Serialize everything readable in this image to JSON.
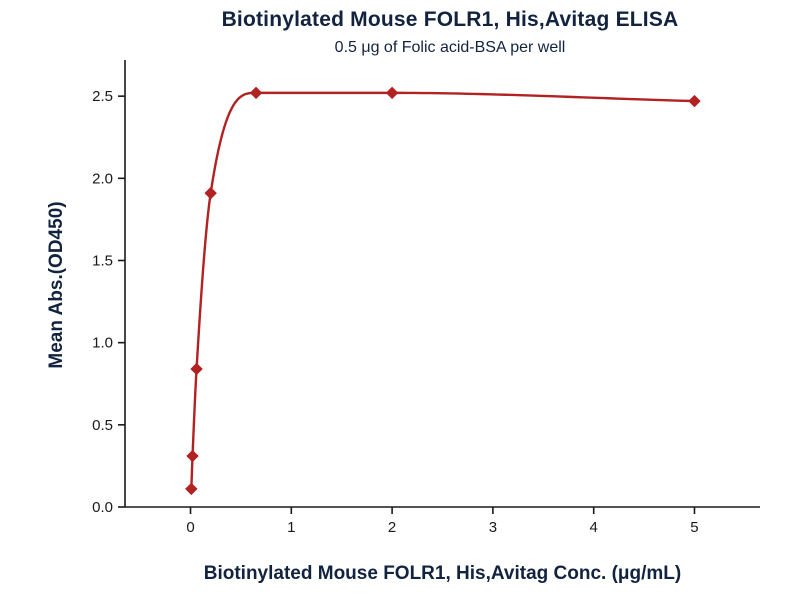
{
  "chart_data": {
    "type": "line",
    "title": "Biotinylated Mouse FOLR1, His,Avitag ELISA",
    "subtitle": "0.5 μg of Folic acid-BSA per well",
    "xlabel": "Biotinylated Mouse FOLR1, His,Avitag Conc. (μg/mL)",
    "ylabel": "Mean Abs.(OD450)",
    "points": [
      {
        "x": 0.008,
        "y": 0.11
      },
      {
        "x": 0.02,
        "y": 0.31
      },
      {
        "x": 0.06,
        "y": 0.84
      },
      {
        "x": 0.2,
        "y": 1.91
      },
      {
        "x": 0.65,
        "y": 2.52
      },
      {
        "x": 2.0,
        "y": 2.52
      },
      {
        "x": 5.0,
        "y": 2.47
      }
    ],
    "xlim": [
      -0.65,
      5.65
    ],
    "ylim": [
      0,
      2.72
    ],
    "xticks": {
      "values": [
        0,
        1,
        2,
        3,
        4,
        5
      ],
      "labels": [
        "0",
        "1",
        "2",
        "3",
        "4",
        "5"
      ]
    },
    "yticks": {
      "values": [
        0,
        0.5,
        1.0,
        1.5,
        2.0,
        2.5
      ],
      "labels": [
        "0.0",
        "0.5",
        "1.0",
        "1.5",
        "2.0",
        "2.5"
      ]
    },
    "grid": false,
    "legend": null,
    "marker": "diamond",
    "colors": {
      "series": "#B22222",
      "text": "#12233f",
      "axis": "#1a1a1a"
    }
  }
}
